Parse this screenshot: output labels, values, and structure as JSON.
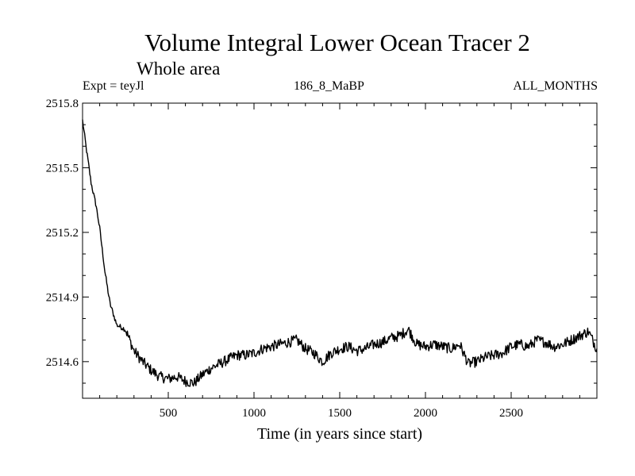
{
  "chart_data": {
    "type": "line",
    "title": "Volume Integral Lower Ocean Tracer 2",
    "subtitle": "Whole area",
    "annotations": {
      "left": "Expt = teyJl",
      "center": "186_8_MaBP",
      "right": "ALL_MONTHS"
    },
    "xlabel": "Time (in years since start)",
    "ylabel": "",
    "xlim": [
      0,
      3000
    ],
    "ylim": [
      2514.43,
      2515.8
    ],
    "x_ticks": [
      500,
      1000,
      1500,
      2000,
      2500
    ],
    "x_tick_labels": [
      "500",
      "1000",
      "1500",
      "2000",
      "2500"
    ],
    "y_ticks": [
      2514.6,
      2514.9,
      2515.2,
      2515.5,
      2515.8
    ],
    "y_tick_labels": [
      "2514.6",
      "2514.9",
      "2515.2",
      "2515.5",
      "2515.8"
    ],
    "grid": false,
    "series": [
      {
        "name": "Volume Integral Lower Ocean Tracer 2",
        "color": "#000000",
        "x": [
          0,
          20,
          50,
          80,
          100,
          130,
          160,
          200,
          250,
          300,
          350,
          400,
          450,
          500,
          550,
          600,
          650,
          700,
          750,
          800,
          850,
          900,
          950,
          1000,
          1050,
          1100,
          1150,
          1200,
          1250,
          1300,
          1350,
          1400,
          1450,
          1500,
          1550,
          1600,
          1650,
          1700,
          1750,
          1800,
          1850,
          1900,
          1950,
          2000,
          2050,
          2100,
          2150,
          2200,
          2250,
          2300,
          2350,
          2400,
          2450,
          2500,
          2550,
          2600,
          2650,
          2700,
          2750,
          2800,
          2850,
          2900,
          2950,
          3000
        ],
        "y": [
          2515.72,
          2515.6,
          2515.43,
          2515.32,
          2515.22,
          2515.02,
          2514.87,
          2514.77,
          2514.75,
          2514.65,
          2514.6,
          2514.56,
          2514.53,
          2514.52,
          2514.53,
          2514.51,
          2514.5,
          2514.54,
          2514.57,
          2514.59,
          2514.61,
          2514.63,
          2514.63,
          2514.64,
          2514.66,
          2514.67,
          2514.68,
          2514.69,
          2514.7,
          2514.66,
          2514.64,
          2514.6,
          2514.64,
          2514.66,
          2514.67,
          2514.65,
          2514.66,
          2514.68,
          2514.69,
          2514.71,
          2514.72,
          2514.75,
          2514.68,
          2514.67,
          2514.68,
          2514.67,
          2514.66,
          2514.68,
          2514.59,
          2514.6,
          2514.62,
          2514.63,
          2514.64,
          2514.67,
          2514.68,
          2514.67,
          2514.7,
          2514.69,
          2514.67,
          2514.68,
          2514.7,
          2514.72,
          2514.74,
          2514.66
        ]
      }
    ]
  }
}
